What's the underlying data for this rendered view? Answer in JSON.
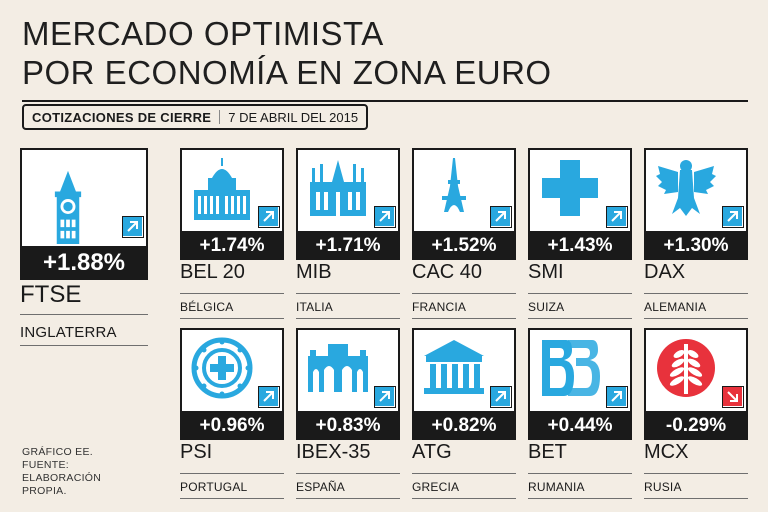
{
  "title": {
    "line1": "MERCADO OPTIMISTA",
    "line2": "POR ECONOMÍA EN ZONA EURO"
  },
  "subheader": {
    "label": "COTIZACIONES DE CIERRE",
    "date": "7 DE ABRIL DEL 2015"
  },
  "colors": {
    "up": "#29a8df",
    "down": "#e8323c",
    "dark": "#1a1a1a",
    "background": "#f3ede4"
  },
  "chart_data": {
    "type": "table",
    "columns": [
      "index",
      "country",
      "change_pct"
    ],
    "rows": [
      {
        "index": "FTSE",
        "country": "INGLATERRA",
        "change": "+1.88%",
        "value": 1.88,
        "direction": "up",
        "icon": "big-ben-icon"
      },
      {
        "index": "BEL 20",
        "country": "BÉLGICA",
        "change": "+1.74%",
        "value": 1.74,
        "direction": "up",
        "icon": "palace-icon"
      },
      {
        "index": "MIB",
        "country": "ITALIA",
        "change": "+1.71%",
        "value": 1.71,
        "direction": "up",
        "icon": "cathedral-icon"
      },
      {
        "index": "CAC 40",
        "country": "FRANCIA",
        "change": "+1.52%",
        "value": 1.52,
        "direction": "up",
        "icon": "eiffel-tower-icon"
      },
      {
        "index": "SMI",
        "country": "SUIZA",
        "change": "+1.43%",
        "value": 1.43,
        "direction": "up",
        "icon": "swiss-cross-icon"
      },
      {
        "index": "DAX",
        "country": "ALEMANIA",
        "change": "+1.30%",
        "value": 1.3,
        "direction": "up",
        "icon": "eagle-icon"
      },
      {
        "index": "PSI",
        "country": "PORTUGAL",
        "change": "+0.96%",
        "value": 0.96,
        "direction": "up",
        "icon": "armillary-sphere-icon"
      },
      {
        "index": "IBEX-35",
        "country": "ESPAÑA",
        "change": "+0.83%",
        "value": 0.83,
        "direction": "up",
        "icon": "puerta-de-alcala-icon"
      },
      {
        "index": "ATG",
        "country": "GRECIA",
        "change": "+0.82%",
        "value": 0.82,
        "direction": "up",
        "icon": "greek-temple-icon"
      },
      {
        "index": "BET",
        "country": "RUMANIA",
        "change": "+0.44%",
        "value": 0.44,
        "direction": "up",
        "icon": "bb-logo-icon"
      },
      {
        "index": "MCX",
        "country": "RUSIA",
        "change": "-0.29%",
        "value": -0.29,
        "direction": "down",
        "icon": "wheat-emblem-icon"
      }
    ]
  },
  "footer": {
    "line1": "GRÁFICO EE.",
    "line2": "FUENTE:",
    "line3": "ELABORACIÓN",
    "line4": "PROPIA."
  }
}
